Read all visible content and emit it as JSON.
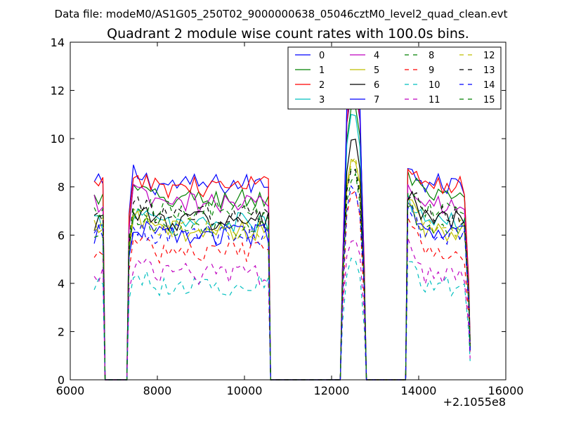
{
  "figure": {
    "suptitle": "Data file: modeM0/AS1G05_250T02_9000000638_05046cztM0_level2_quad_clean.evt"
  },
  "chart_data": {
    "type": "line",
    "title": "Quadrant 2 module wise count rates with 100.0s bins.",
    "xlabel": "",
    "ylabel": "",
    "x_offset_label": "+2.1055e8",
    "xlim": [
      6000,
      16000
    ],
    "ylim": [
      0,
      14
    ],
    "xticks": [
      "6000",
      "8000",
      "10000",
      "12000",
      "14000",
      "16000"
    ],
    "yticks": [
      "0",
      "2",
      "4",
      "6",
      "8",
      "10",
      "12",
      "14"
    ],
    "grid": false,
    "legend_position": "top-right",
    "legend_columns": 4,
    "note": "x values are offsets from 2.1055e8 (seconds)",
    "segments": [
      {
        "start": 6550,
        "end": 6750
      },
      {
        "start": 7350,
        "end": 10550
      },
      {
        "start": 12250,
        "end": 12750
      },
      {
        "start": 13750,
        "end": 15150
      }
    ],
    "series": [
      {
        "name": "0",
        "color": "#0000ff",
        "dash": "solid",
        "level": 8.1,
        "peak": 12.2
      },
      {
        "name": "1",
        "color": "#008000",
        "dash": "solid",
        "level": 7.5,
        "peak": 11.5
      },
      {
        "name": "2",
        "color": "#ff0000",
        "dash": "solid",
        "level": 8.0,
        "peak": 12.4
      },
      {
        "name": "3",
        "color": "#00bfbf",
        "dash": "solid",
        "level": 6.5,
        "peak": 11.0
      },
      {
        "name": "4",
        "color": "#bf00bf",
        "dash": "solid",
        "level": 7.3,
        "peak": 12.6
      },
      {
        "name": "5",
        "color": "#bfbf00",
        "dash": "solid",
        "level": 6.2,
        "peak": 9.3
      },
      {
        "name": "6",
        "color": "#000000",
        "dash": "solid",
        "level": 6.6,
        "peak": 10.0
      },
      {
        "name": "7",
        "color": "#0000ff",
        "dash": "solid",
        "level": 6.0,
        "peak": 13.2
      },
      {
        "name": "8",
        "color": "#008000",
        "dash": "dashed",
        "level": 6.2,
        "peak": 9.0
      },
      {
        "name": "9",
        "color": "#ff0000",
        "dash": "dashed",
        "level": 5.3,
        "peak": 7.8
      },
      {
        "name": "10",
        "color": "#00bfbf",
        "dash": "dashed",
        "level": 3.9,
        "peak": 5.0
      },
      {
        "name": "11",
        "color": "#bf00bf",
        "dash": "dashed",
        "level": 4.4,
        "peak": 6.0
      },
      {
        "name": "12",
        "color": "#bfbf00",
        "dash": "dashed",
        "level": 6.3,
        "peak": 9.2
      },
      {
        "name": "13",
        "color": "#000000",
        "dash": "dashed",
        "level": 6.8,
        "peak": 8.8
      },
      {
        "name": "14",
        "color": "#0000ff",
        "dash": "dashed",
        "level": 6.0,
        "peak": 8.0
      },
      {
        "name": "15",
        "color": "#008000",
        "dash": "dashed",
        "level": 7.0,
        "peak": 8.5
      }
    ]
  }
}
